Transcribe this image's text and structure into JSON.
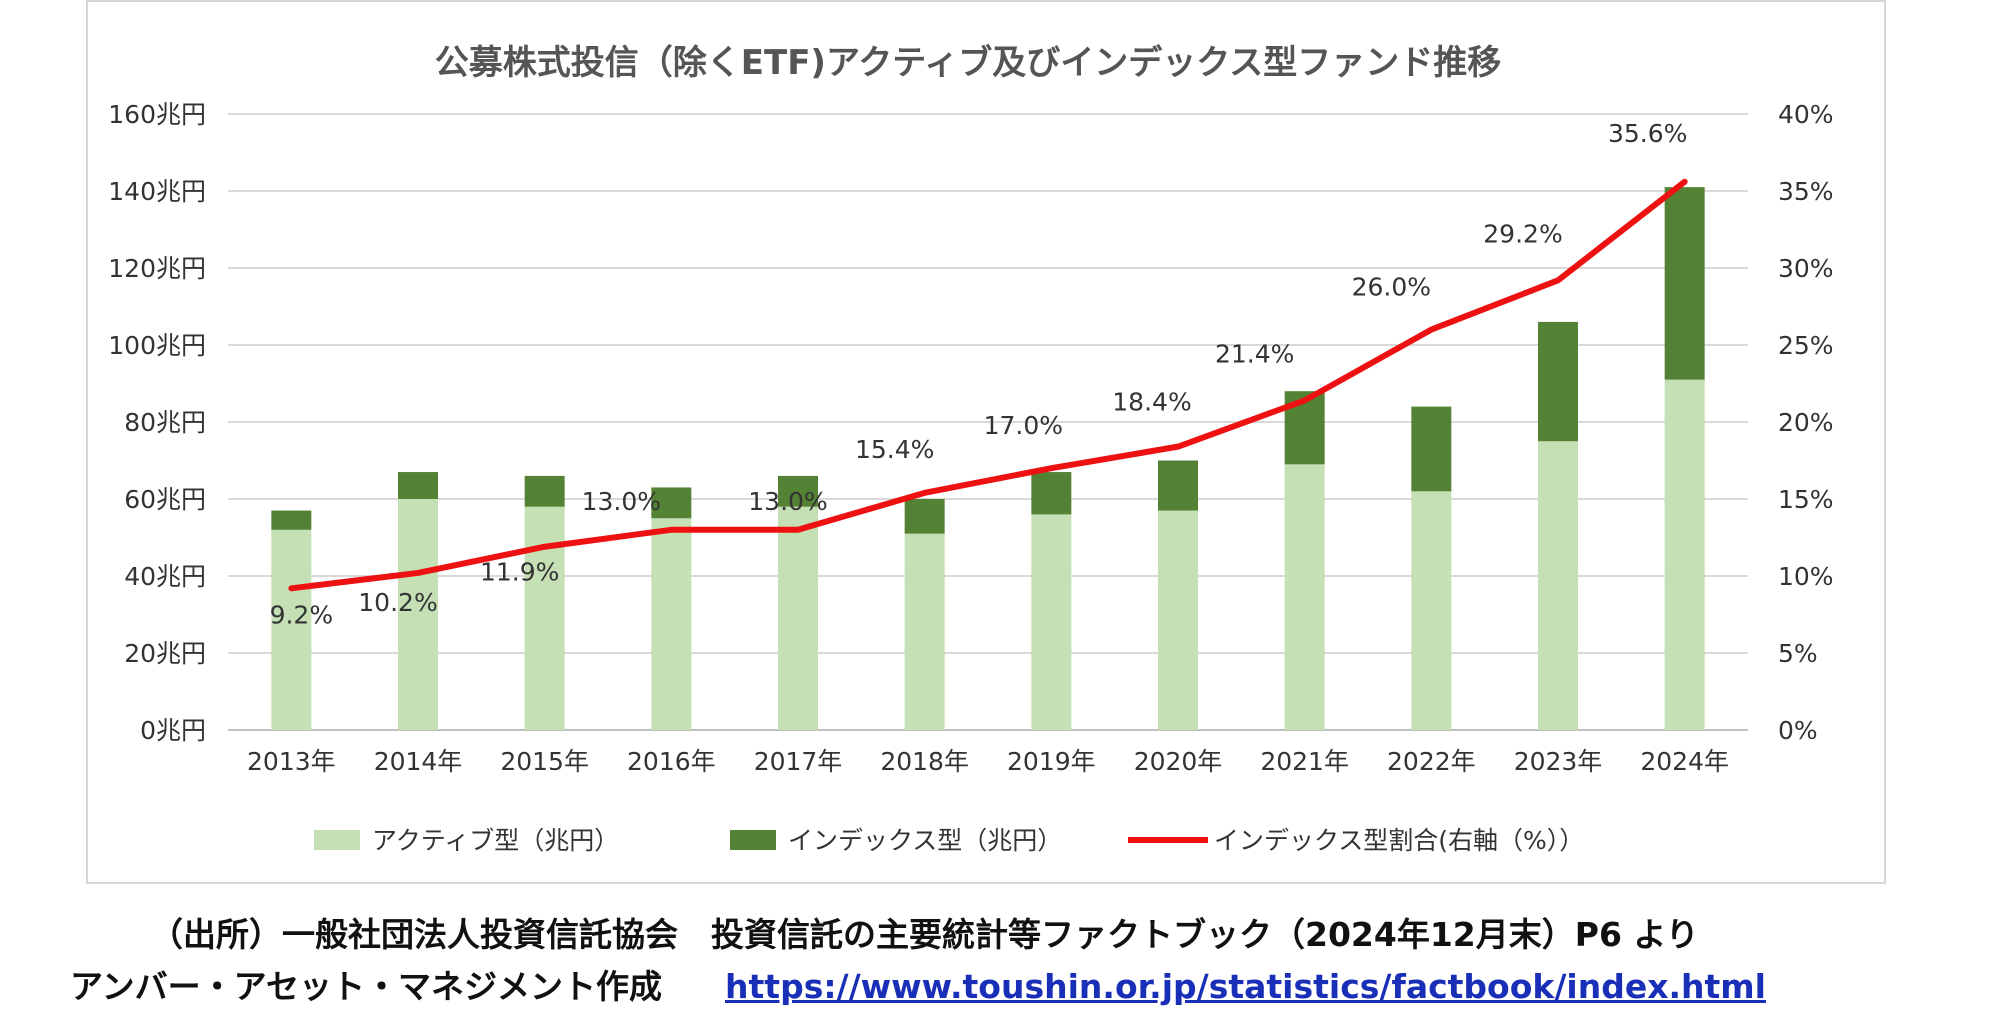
{
  "chart_data": {
    "type": "bar",
    "title": "公募株式投信（除くETF)アクティブ及びインデックス型ファンド推移",
    "categories": [
      "2013年",
      "2014年",
      "2015年",
      "2016年",
      "2017年",
      "2018年",
      "2019年",
      "2020年",
      "2021年",
      "2022年",
      "2023年",
      "2024年"
    ],
    "series": [
      {
        "name": "アクティブ型（兆円）",
        "kind": "bar-stacked",
        "color": "#c5e0b4",
        "values": [
          52,
          60,
          58,
          55,
          58,
          51,
          56,
          57,
          69,
          62,
          75,
          91
        ]
      },
      {
        "name": "インデックス型（兆円）",
        "kind": "bar-stacked",
        "color": "#548235",
        "values": [
          5,
          7,
          8,
          8,
          8,
          9,
          11,
          13,
          19,
          22,
          31,
          50
        ]
      },
      {
        "name": "インデックス型割合(右軸（%））",
        "kind": "line",
        "axis": "right",
        "color": "#ee1111",
        "values": [
          9.2,
          10.2,
          11.9,
          13.0,
          13.0,
          15.4,
          17.0,
          18.4,
          21.4,
          26.0,
          29.2,
          35.6
        ],
        "labels": [
          "9.2%",
          "10.2%",
          "11.9%",
          "13.0%",
          "13.0%",
          "15.4%",
          "17.0%",
          "18.4%",
          "21.4%",
          "26.0%",
          "29.2%",
          "35.6%"
        ]
      }
    ],
    "y_left": {
      "ylim": [
        0,
        160
      ],
      "ticks": [
        "0兆円",
        "20兆円",
        "40兆円",
        "60兆円",
        "80兆円",
        "100兆円",
        "120兆円",
        "140兆円",
        "160兆円"
      ]
    },
    "y_right": {
      "ylim": [
        0,
        40
      ],
      "ticks": [
        "0%",
        "5%",
        "10%",
        "15%",
        "20%",
        "25%",
        "30%",
        "35%",
        "40%"
      ]
    },
    "grid": true,
    "legend_position": "bottom"
  },
  "source": {
    "line1": "（出所）一般社団法人投資信託協会　投資信託の主要統計等ファクトブック（2024年12月末）P6 より",
    "line2_prefix": "アンバー・アセット・マネジメント作成",
    "line2_url": "https://www.toushin.or.jp/statistics/factbook/index.html"
  }
}
